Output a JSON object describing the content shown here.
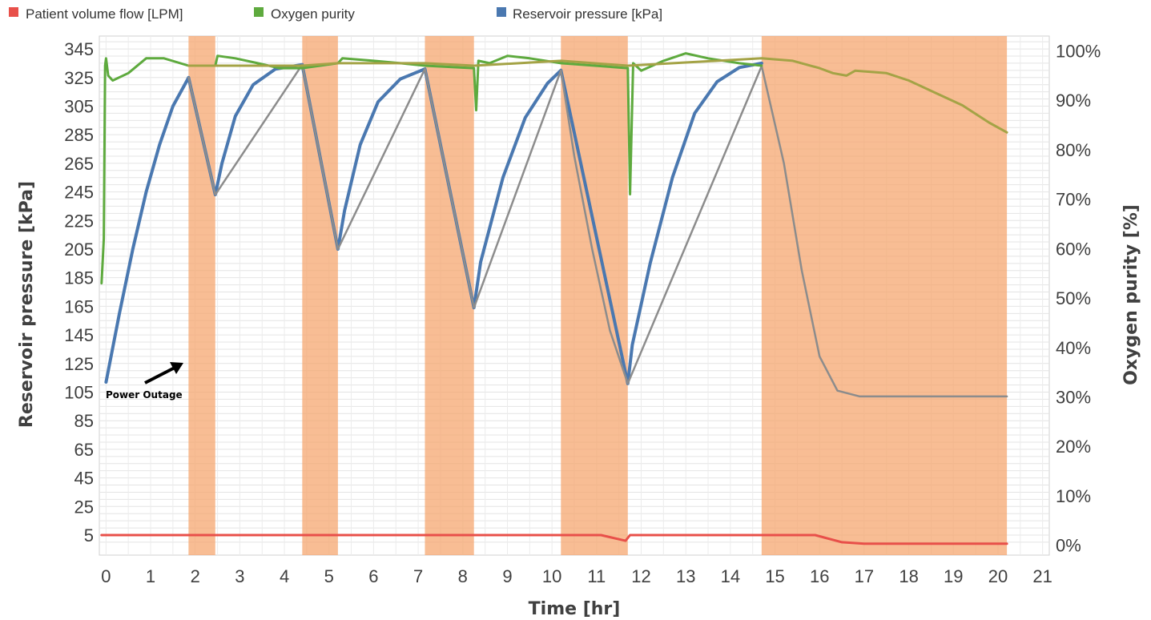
{
  "chart_data": {
    "type": "line",
    "xlabel": "Time [hr]",
    "ylabel": "Reservoir pressure [kPa]",
    "y2label": "Oxygen purity [%]",
    "xlim": [
      -0.15,
      21.15
    ],
    "ylim": [
      -9,
      354
    ],
    "y2lim": [
      -0.02,
      1.03
    ],
    "x_ticks": [
      0,
      1,
      2,
      3,
      4,
      5,
      6,
      7,
      8,
      9,
      10,
      11,
      12,
      13,
      14,
      15,
      16,
      17,
      18,
      19,
      20,
      21
    ],
    "y_ticks": [
      5,
      25,
      45,
      65,
      85,
      105,
      125,
      145,
      165,
      185,
      205,
      225,
      245,
      265,
      285,
      305,
      325,
      345
    ],
    "y2_ticks": [
      0,
      0.1,
      0.2,
      0.3,
      0.4,
      0.5,
      0.6,
      0.7,
      0.8,
      0.9,
      1.0
    ],
    "y2_tick_labels": [
      "0%",
      "10%",
      "20%",
      "30%",
      "40%",
      "50%",
      "60%",
      "70%",
      "80%",
      "90%",
      "100%"
    ],
    "grid": true,
    "legend": "top",
    "legend_entries": [
      "Patient volume flow [LPM]",
      "Oxygen purity",
      "Reservoir pressure [kPa]"
    ],
    "power_outage_intervals": [
      [
        1.85,
        2.45
      ],
      [
        4.4,
        5.2
      ],
      [
        7.15,
        8.25
      ],
      [
        10.2,
        11.7
      ],
      [
        14.7,
        20.2
      ]
    ],
    "annotation": "Power Outage",
    "series": [
      {
        "name": "Reservoir pressure [kPa]",
        "axis": "left",
        "color": "#4a78b0",
        "points": [
          [
            0,
            112
          ],
          [
            0.3,
            160
          ],
          [
            0.6,
            205
          ],
          [
            0.9,
            245
          ],
          [
            1.2,
            278
          ],
          [
            1.5,
            305
          ],
          [
            1.8,
            322
          ],
          [
            1.85,
            325
          ],
          [
            2.45,
            243
          ],
          [
            2.6,
            265
          ],
          [
            2.9,
            298
          ],
          [
            3.3,
            320
          ],
          [
            3.8,
            331
          ],
          [
            4.4,
            334
          ],
          [
            5.2,
            205
          ],
          [
            5.35,
            232
          ],
          [
            5.7,
            278
          ],
          [
            6.1,
            308
          ],
          [
            6.6,
            324
          ],
          [
            7.15,
            331
          ],
          [
            8.25,
            164
          ],
          [
            8.4,
            196
          ],
          [
            8.9,
            255
          ],
          [
            9.4,
            297
          ],
          [
            9.9,
            321
          ],
          [
            10.2,
            330
          ],
          [
            11.7,
            111
          ],
          [
            11.8,
            138
          ],
          [
            12.2,
            195
          ],
          [
            12.7,
            255
          ],
          [
            13.2,
            300
          ],
          [
            13.7,
            322
          ],
          [
            14.2,
            332
          ],
          [
            14.7,
            335
          ]
        ]
      },
      {
        "name": "Reservoir pressure [kPa] (outage decay)",
        "axis": "left",
        "color": "#8c8c8c",
        "points": [
          [
            1.85,
            325
          ],
          [
            2.45,
            243
          ],
          [
            4.4,
            334
          ],
          [
            5.2,
            205
          ],
          [
            7.15,
            331
          ],
          [
            8.25,
            164
          ],
          [
            10.2,
            330
          ],
          [
            10.5,
            270
          ],
          [
            10.9,
            205
          ],
          [
            11.3,
            148
          ],
          [
            11.7,
            111
          ],
          [
            14.7,
            333
          ],
          [
            15.2,
            265
          ],
          [
            15.6,
            190
          ],
          [
            16.0,
            130
          ],
          [
            16.4,
            106
          ],
          [
            16.9,
            102
          ],
          [
            20.2,
            102
          ]
        ]
      },
      {
        "name": "Oxygen purity",
        "axis": "right",
        "color": "#5eaa3e",
        "points": [
          [
            -0.1,
            0.53
          ],
          [
            -0.05,
            0.62
          ],
          [
            -0.02,
            0.97
          ],
          [
            0.0,
            0.985
          ],
          [
            0.05,
            0.95
          ],
          [
            0.15,
            0.94
          ],
          [
            0.5,
            0.955
          ],
          [
            0.9,
            0.985
          ],
          [
            1.3,
            0.985
          ],
          [
            1.85,
            0.97
          ],
          [
            2.45,
            0.97
          ],
          [
            2.5,
            0.99
          ],
          [
            2.9,
            0.985
          ],
          [
            3.4,
            0.975
          ],
          [
            3.9,
            0.965
          ],
          [
            4.4,
            0.965
          ],
          [
            5.2,
            0.975
          ],
          [
            5.3,
            0.985
          ],
          [
            6.0,
            0.98
          ],
          [
            6.6,
            0.975
          ],
          [
            7.15,
            0.97
          ],
          [
            8.25,
            0.965
          ],
          [
            8.3,
            0.88
          ],
          [
            8.35,
            0.98
          ],
          [
            8.6,
            0.975
          ],
          [
            9.0,
            0.99
          ],
          [
            9.5,
            0.985
          ],
          [
            10.2,
            0.975
          ],
          [
            11.7,
            0.965
          ],
          [
            11.75,
            0.71
          ],
          [
            11.82,
            0.975
          ],
          [
            12.0,
            0.96
          ],
          [
            12.5,
            0.98
          ],
          [
            13.0,
            0.995
          ],
          [
            13.5,
            0.985
          ],
          [
            14.2,
            0.975
          ],
          [
            14.7,
            0.97
          ]
        ]
      },
      {
        "name": "Oxygen purity (outage)",
        "axis": "right",
        "color": "#a4a346",
        "points": [
          [
            1.85,
            0.97
          ],
          [
            2.45,
            0.97
          ],
          [
            4.4,
            0.97
          ],
          [
            5.2,
            0.975
          ],
          [
            7.15,
            0.975
          ],
          [
            8.25,
            0.97
          ],
          [
            10.2,
            0.98
          ],
          [
            11.7,
            0.97
          ],
          [
            14.7,
            0.985
          ],
          [
            15.4,
            0.98
          ],
          [
            16.0,
            0.965
          ],
          [
            16.3,
            0.955
          ],
          [
            16.6,
            0.95
          ],
          [
            16.8,
            0.96
          ],
          [
            17.5,
            0.955
          ],
          [
            18.0,
            0.94
          ],
          [
            18.6,
            0.915
          ],
          [
            19.2,
            0.89
          ],
          [
            19.8,
            0.855
          ],
          [
            20.2,
            0.835
          ]
        ]
      },
      {
        "name": "Patient volume flow [LPM]",
        "axis": "left",
        "color": "#e8504a",
        "points": [
          [
            -0.1,
            5
          ],
          [
            11.1,
            5
          ],
          [
            11.65,
            1
          ],
          [
            11.75,
            5
          ],
          [
            15.9,
            5
          ],
          [
            16.5,
            0
          ],
          [
            17.0,
            -1
          ],
          [
            20.2,
            -1
          ]
        ]
      }
    ]
  }
}
